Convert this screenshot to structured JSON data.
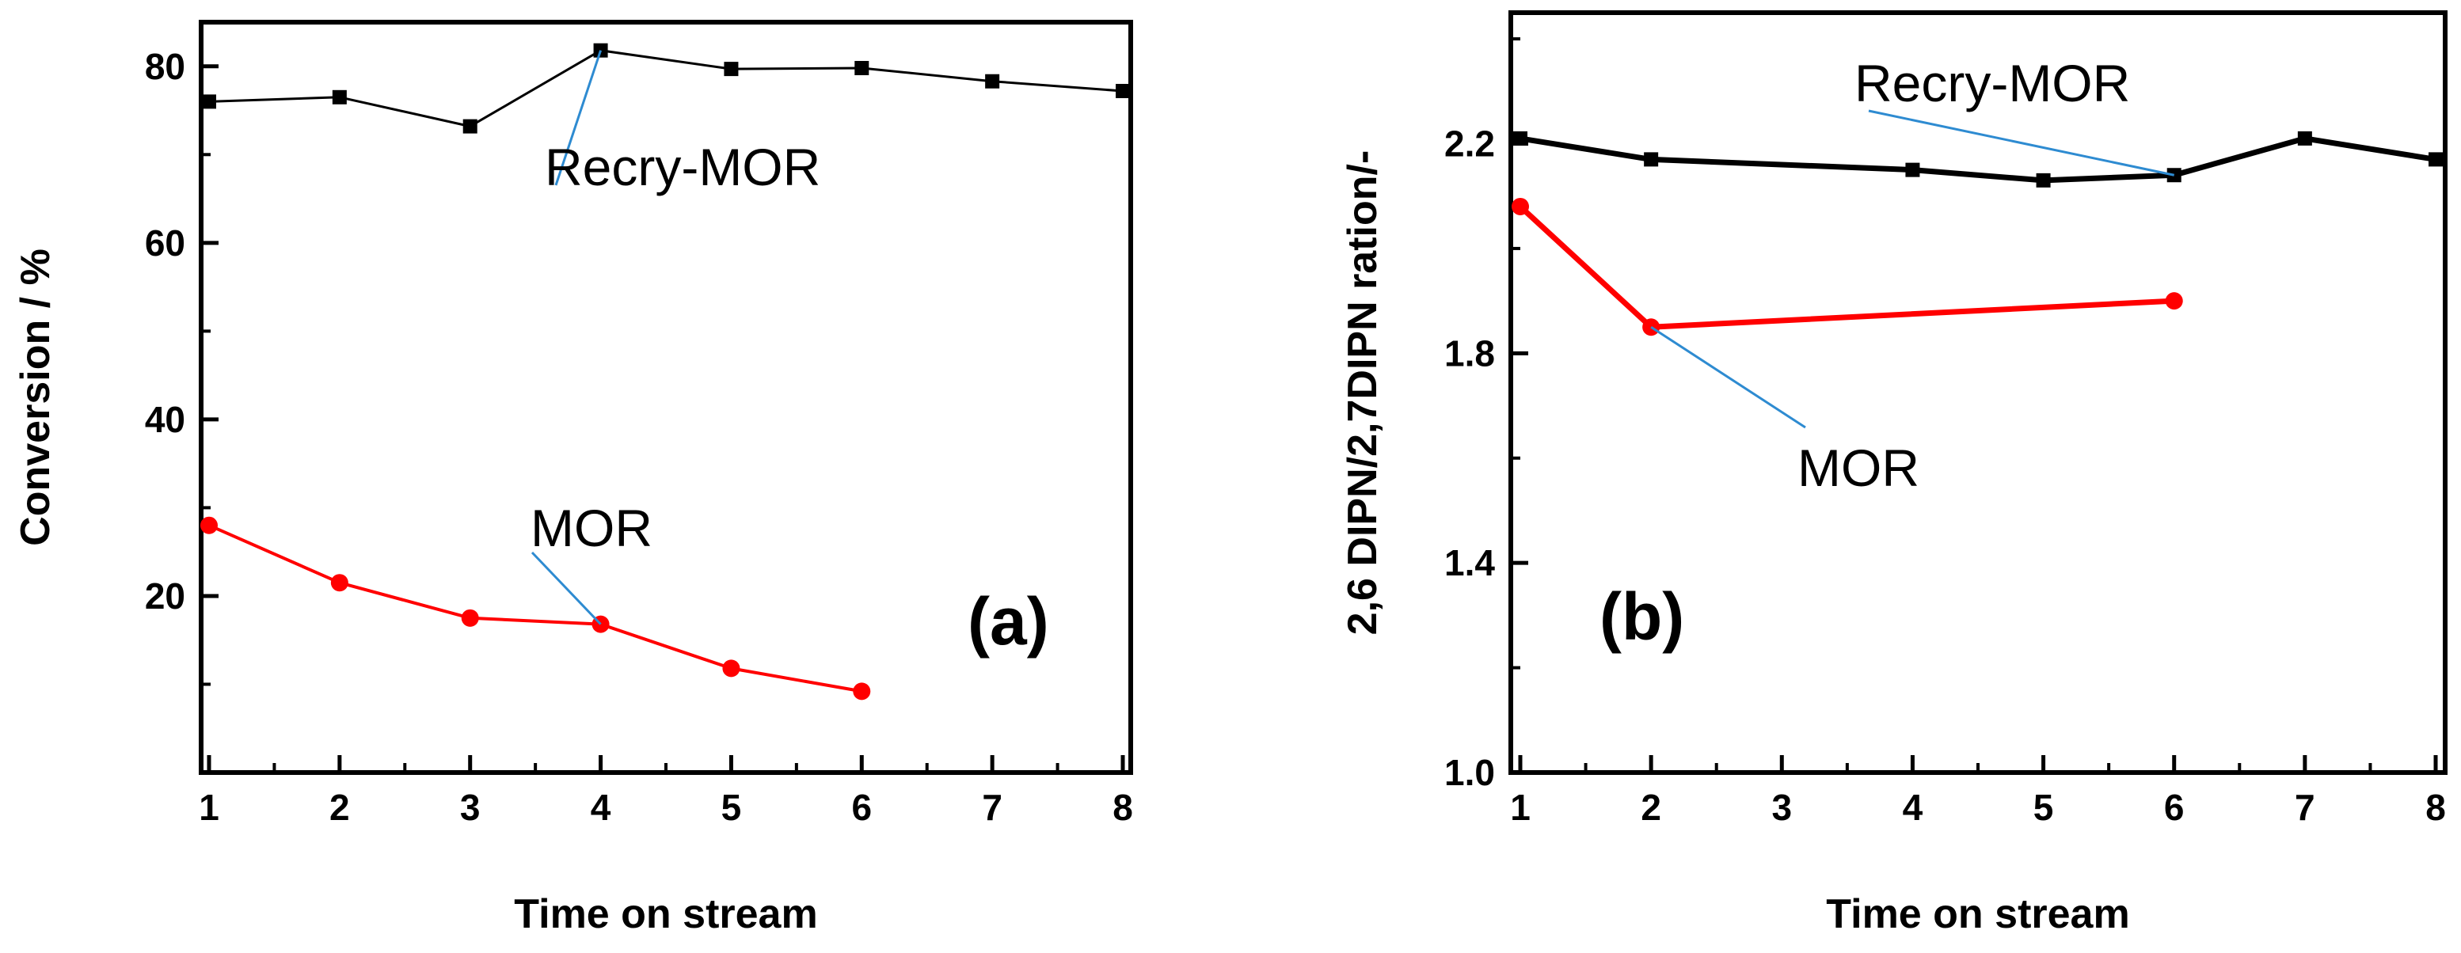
{
  "chart_data": [
    {
      "type": "line",
      "panel_label": "(a)",
      "xlabel": "Time on stream",
      "ylabel": "Conversion / %",
      "xlim": [
        1,
        8
      ],
      "ylim": [
        0,
        85
      ],
      "xticks": [
        1,
        2,
        3,
        4,
        5,
        6,
        7,
        8
      ],
      "xtick_labels": [
        "1",
        "2",
        "3",
        "4",
        "5",
        "6",
        "7",
        "8"
      ],
      "yticks": [
        20,
        40,
        60,
        80
      ],
      "ytick_labels": [
        "20",
        "40",
        "60",
        "80"
      ],
      "series": [
        {
          "name": "Recry-MOR",
          "color": "#000000",
          "marker": "square",
          "x": [
            1,
            2,
            3,
            4,
            5,
            6,
            7,
            8
          ],
          "values": [
            76.0,
            76.5,
            73.2,
            81.8,
            79.7,
            79.8,
            78.3,
            77.2
          ]
        },
        {
          "name": "MOR",
          "color": "#ff0000",
          "marker": "circle",
          "x": [
            1,
            2,
            3,
            4,
            5,
            6
          ],
          "values": [
            28.0,
            21.5,
            17.5,
            16.8,
            11.8,
            9.2
          ]
        }
      ],
      "annotations": [
        {
          "text": "Recry-MOR",
          "series": "Recry-MOR",
          "point_index": 3
        },
        {
          "text": "MOR",
          "series": "MOR",
          "point_index": 3
        }
      ]
    },
    {
      "type": "line",
      "panel_label": "(b)",
      "xlabel": "Time on stream",
      "ylabel": "2,6 DIPN/2,7DIPN ration/-",
      "xlim": [
        1,
        8
      ],
      "ylim": [
        1.0,
        2.45
      ],
      "xticks": [
        1,
        2,
        3,
        4,
        5,
        6,
        7,
        8
      ],
      "xtick_labels": [
        "1",
        "2",
        "3",
        "4",
        "5",
        "6",
        "7",
        "8"
      ],
      "yticks": [
        1.0,
        1.4,
        1.8,
        2.2
      ],
      "ytick_labels": [
        "1.0",
        "1.4",
        "1.8",
        "2.2"
      ],
      "series": [
        {
          "name": "Recry-MOR",
          "color": "#000000",
          "marker": "square",
          "x": [
            1,
            2,
            4,
            5,
            6,
            7,
            8
          ],
          "values": [
            2.21,
            2.17,
            2.15,
            2.13,
            2.14,
            2.21,
            2.17
          ]
        },
        {
          "name": "MOR",
          "color": "#ff0000",
          "marker": "circle",
          "x": [
            1,
            2,
            6
          ],
          "values": [
            2.08,
            1.85,
            1.9
          ]
        }
      ],
      "annotations": [
        {
          "text": "Recry-MOR",
          "series": "Recry-MOR",
          "point_index": 4
        },
        {
          "text": "MOR",
          "series": "MOR",
          "point_index": 1
        }
      ]
    }
  ]
}
